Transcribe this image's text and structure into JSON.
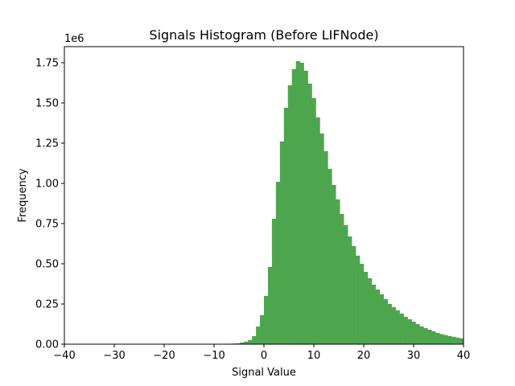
{
  "chart_data": {
    "type": "bar",
    "title": "Signals Histogram (Before LIFNode)",
    "xlabel": "Signal Value",
    "ylabel": "Frequency",
    "y_offset_label": "1e6",
    "xlim": [
      -40,
      40
    ],
    "ylim": [
      0,
      1.85
    ],
    "y_scale_multiplier": 1000000,
    "x_ticks": [
      -40,
      -30,
      -20,
      -10,
      0,
      10,
      20,
      30,
      40
    ],
    "y_ticks": [
      0.0,
      0.25,
      0.5,
      0.75,
      1.0,
      1.25,
      1.5,
      1.75
    ],
    "y_tick_labels": [
      "0.00",
      "0.25",
      "0.50",
      "0.75",
      "1.00",
      "1.25",
      "1.50",
      "1.75"
    ],
    "x_tick_labels": [
      "−40",
      "−30",
      "−20",
      "−10",
      "0",
      "10",
      "20",
      "30",
      "40"
    ],
    "bar_color": "#4da64d",
    "grid": false,
    "series": [
      {
        "bin_edges_start": -40,
        "bin_width": 0.8,
        "values": [
          0,
          0,
          0,
          0,
          0,
          0,
          0,
          0,
          0,
          0,
          0,
          0,
          0,
          0,
          0,
          0,
          0,
          0,
          0,
          0,
          0,
          0,
          0,
          0,
          0,
          0,
          0,
          0,
          0,
          0,
          0,
          0,
          0,
          0,
          0,
          0,
          0,
          0,
          0,
          0.001,
          0.002,
          0.003,
          0.004,
          0.006,
          0.01,
          0.016,
          0.026,
          0.05,
          0.11,
          0.18,
          0.3,
          0.48,
          0.78,
          1.01,
          1.26,
          1.47,
          1.61,
          1.71,
          1.76,
          1.75,
          1.7,
          1.62,
          1.53,
          1.41,
          1.31,
          1.2,
          1.09,
          0.99,
          0.9,
          0.81,
          0.74,
          0.67,
          0.61,
          0.55,
          0.5,
          0.45,
          0.41,
          0.37,
          0.34,
          0.31,
          0.28,
          0.25,
          0.23,
          0.21,
          0.19,
          0.17,
          0.155,
          0.14,
          0.125,
          0.11,
          0.1,
          0.09,
          0.08,
          0.07,
          0.063,
          0.057,
          0.051,
          0.046,
          0.041,
          0.036
        ]
      }
    ]
  }
}
